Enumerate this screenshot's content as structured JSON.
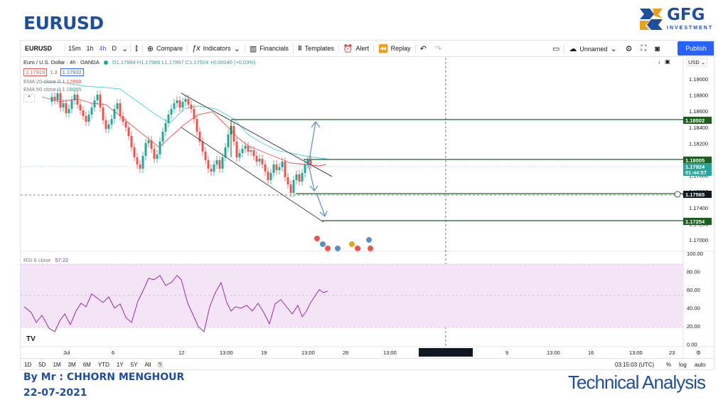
{
  "slide": {
    "title": "EURUSD",
    "author": "By Mr : CHHORN MENGHOUR",
    "date": "22-07-2021",
    "section": "Technical Analysis",
    "logo_name": "GFG",
    "logo_sub": "INVESTMENT"
  },
  "toolbar": {
    "symbol": "EURUSD",
    "intervals": [
      "15m",
      "1h",
      "4h",
      "D"
    ],
    "active_interval": "4h",
    "compare": "Compare",
    "indicators": "Indicators",
    "financials": "Financials",
    "templates": "Templates",
    "alert": "Alert",
    "replay": "Replay",
    "layout_name": "Unnamed",
    "publish": "Publish"
  },
  "legend": {
    "title": "Euro / U.S. Dollar · 4h · OANDA",
    "ohlc": "O1.17884 H1.17986 L1.17867 C1.17924 +0.00040 (+0.03%)",
    "bid": "1.17919",
    "spread": "1.3",
    "ask": "1.17932",
    "ema20_label": "EMA 20 close 0",
    "ema20_value": "1.17898",
    "ema50_label": "EMA 50 close 0",
    "ema50_value": "1.18065",
    "rsi_label": "RSI 6 close",
    "rsi_value": "57.22",
    "currency": "USD"
  },
  "price_axis": {
    "ticks": [
      "1.19000",
      "1.18800",
      "1.18600",
      "1.18400",
      "1.18200",
      "1.18000",
      "1.17800",
      "1.17600",
      "1.17400",
      "1.17200",
      "1.17000"
    ],
    "labels": [
      {
        "text": "1.18502",
        "color": "#1b5e20"
      },
      {
        "text": "1.18005",
        "color": "#1b5e20"
      },
      {
        "text": "1.17924",
        "color": "#26a69a"
      },
      {
        "text": "01:44:57",
        "color": "#26a69a"
      },
      {
        "text": "1.17565",
        "color": "#131722"
      },
      {
        "text": "1.17254",
        "color": "#1b5e20"
      }
    ]
  },
  "rsi_axis": {
    "ticks": [
      "100.00",
      "80.00",
      "60.00",
      "40.00",
      "20.00",
      "0.00"
    ]
  },
  "time_axis": {
    "ticks": [
      "Jul",
      "6",
      "12",
      "13:00",
      "19",
      "13:00",
      "26",
      "13:00",
      "A",
      "9",
      "13:00",
      "16",
      "13:00",
      "23"
    ],
    "crosshair_label": "03 Aug '21  09:00"
  },
  "bottombar": {
    "ranges": [
      "1D",
      "5D",
      "1M",
      "3M",
      "6M",
      "YTD",
      "1Y",
      "5Y",
      "All"
    ],
    "clock": "03:15:03 (UTC)",
    "percent": "%",
    "log": "log",
    "auto": "auto"
  },
  "colors": {
    "brand": "#1f4e9c",
    "up": "#26a69a",
    "down": "#ef5350",
    "level_line": "#1b5e20",
    "rsi": "#9c27b0",
    "rsi_band": "#f3e5f5",
    "publish": "#2962ff"
  }
}
